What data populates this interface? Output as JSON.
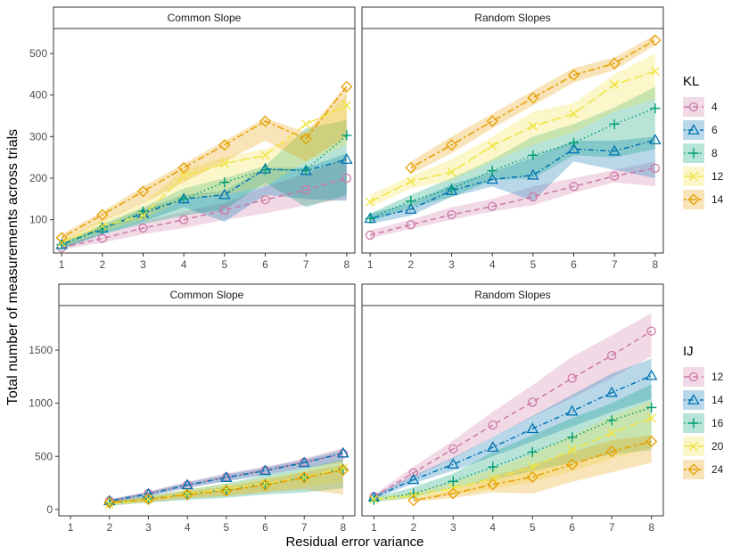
{
  "chart_data": {
    "ylabel": "Total number of measurements across trials",
    "xlabel": "Residual error variance",
    "facets": [
      {
        "id": "kl-common",
        "legend_group": "kl",
        "strip": "Common Slope",
        "type": "line",
        "x_ticks": [
          1,
          2,
          3,
          4,
          5,
          6,
          7,
          8
        ],
        "y_ticks": [
          100,
          200,
          300,
          400,
          500
        ],
        "ylim": [
          20,
          560
        ],
        "xlim": [
          0.8,
          8.2
        ],
        "series": [
          {
            "name": "4",
            "x": [
              1,
              2,
              3,
              4,
              5,
              6,
              7,
              8
            ],
            "y": [
              33,
              55,
              80,
              100,
              123,
              148,
              172,
              200
            ],
            "lo": [
              28,
              45,
              65,
              80,
              100,
              115,
              135,
              150
            ],
            "hi": [
              40,
              65,
              95,
              120,
              140,
              180,
              210,
              250
            ]
          },
          {
            "name": "6",
            "x": [
              1,
              2,
              3,
              4,
              5,
              6,
              7,
              8
            ],
            "y": [
              40,
              80,
              115,
              150,
              160,
              222,
              218,
              245
            ],
            "lo": [
              30,
              65,
              95,
              130,
              95,
              160,
              150,
              145
            ],
            "hi": [
              45,
              85,
              125,
              160,
              170,
              225,
              225,
              260
            ]
          },
          {
            "name": "8",
            "x": [
              1,
              2,
              3,
              4,
              5,
              6,
              7,
              8
            ],
            "y": [
              40,
              77,
              120,
              150,
              190,
              220,
              220,
              303
            ],
            "lo": [
              30,
              65,
              90,
              110,
              125,
              190,
              130,
              160
            ],
            "hi": [
              45,
              90,
              130,
              175,
              200,
              230,
              320,
              340
            ]
          },
          {
            "name": "12",
            "x": [
              1,
              2,
              3,
              4,
              5,
              6,
              7,
              8
            ],
            "y": [
              45,
              85,
              110,
              205,
              235,
              255,
              330,
              375
            ],
            "lo": [
              35,
              70,
              100,
              150,
              160,
              180,
              240,
              280
            ],
            "hi": [
              50,
              100,
              140,
              220,
              250,
              270,
              310,
              400
            ]
          },
          {
            "name": "14",
            "x": [
              1,
              2,
              3,
              4,
              5,
              6,
              7,
              8
            ],
            "y": [
              57,
              112,
              168,
              225,
              280,
              337,
              295,
              420
            ],
            "lo": [
              45,
              95,
              140,
              190,
              240,
              290,
              240,
              300
            ],
            "hi": [
              65,
              120,
              180,
              235,
              290,
              345,
              310,
              425
            ]
          }
        ]
      },
      {
        "id": "kl-random",
        "legend_group": "kl",
        "strip": "Random Slopes",
        "type": "line",
        "x_ticks": [
          1,
          2,
          3,
          4,
          5,
          6,
          7,
          8
        ],
        "y_ticks": [],
        "ylim": [
          20,
          560
        ],
        "xlim": [
          0.8,
          8.2
        ],
        "series": [
          {
            "name": "4",
            "x": [
              1,
              2,
              3,
              4,
              5,
              6,
              7,
              8
            ],
            "y": [
              63,
              88,
              112,
              132,
              155,
              180,
              205,
              224
            ],
            "lo": [
              55,
              78,
              100,
              120,
              135,
              165,
              190,
              180
            ],
            "hi": [
              75,
              100,
              130,
              150,
              180,
              200,
              220,
              240
            ]
          },
          {
            "name": "6",
            "x": [
              1,
              2,
              3,
              4,
              5,
              6,
              7,
              8
            ],
            "y": [
              103,
              125,
              170,
              197,
              207,
              270,
              265,
              292
            ],
            "lo": [
              90,
              110,
              155,
              180,
              145,
              240,
              220,
              200
            ],
            "hi": [
              115,
              140,
              185,
              215,
              250,
              290,
              290,
              300
            ]
          },
          {
            "name": "8",
            "x": [
              1,
              2,
              3,
              4,
              5,
              6,
              7,
              8
            ],
            "y": [
              103,
              145,
              175,
              218,
              255,
              285,
              330,
              368
            ],
            "lo": [
              95,
              130,
              155,
              195,
              200,
              255,
              250,
              270
            ],
            "hi": [
              115,
              160,
              200,
              245,
              300,
              330,
              370,
              420
            ]
          },
          {
            "name": "12",
            "x": [
              1,
              2,
              3,
              4,
              5,
              6,
              7,
              8
            ],
            "y": [
              143,
              192,
              215,
              278,
              325,
              355,
              425,
              457
            ],
            "lo": [
              130,
              175,
              195,
              240,
              280,
              310,
              360,
              390
            ],
            "hi": [
              160,
              205,
              245,
              300,
              360,
              380,
              450,
              500
            ]
          },
          {
            "name": "14",
            "x": [
              1,
              2,
              3,
              4,
              5,
              6,
              7,
              8
            ],
            "y": [
              null,
              225,
              280,
              337,
              393,
              448,
              476,
              532
            ],
            "lo": [
              null,
              210,
              260,
              320,
              375,
              430,
              460,
              520
            ],
            "hi": [
              null,
              240,
              300,
              355,
              410,
              465,
              490,
              545
            ]
          }
        ]
      },
      {
        "id": "ij-common",
        "legend_group": "ij",
        "strip": "Common Slope",
        "type": "line",
        "x_ticks": [
          1,
          2,
          3,
          4,
          5,
          6,
          7,
          8
        ],
        "y_ticks": [
          0,
          500,
          1000,
          1500
        ],
        "ylim": [
          -60,
          1920
        ],
        "xlim": [
          0.7,
          8.3
        ],
        "series": [
          {
            "name": "12",
            "x": [
              2,
              3,
              4,
              5,
              6,
              7,
              8
            ],
            "y": [
              80,
              150,
              230,
              305,
              370,
              445,
              525
            ],
            "lo": [
              65,
              125,
              200,
              270,
              330,
              390,
              440
            ],
            "hi": [
              95,
              170,
              260,
              340,
              400,
              480,
              580
            ]
          },
          {
            "name": "14",
            "x": [
              2,
              3,
              4,
              5,
              6,
              7,
              8
            ],
            "y": [
              80,
              145,
              230,
              300,
              365,
              440,
              530
            ],
            "lo": [
              65,
              125,
              205,
              265,
              320,
              390,
              460
            ],
            "hi": [
              95,
              165,
              255,
              330,
              395,
              470,
              560
            ]
          },
          {
            "name": "16",
            "x": [
              2,
              3,
              4,
              5,
              6,
              7,
              8
            ],
            "y": [
              55,
              100,
              145,
              185,
              240,
              300,
              380
            ],
            "lo": [
              35,
              65,
              90,
              110,
              140,
              160,
              200
            ],
            "hi": [
              75,
              130,
              185,
              245,
              320,
              390,
              470
            ]
          },
          {
            "name": "20",
            "x": [
              2,
              3,
              4,
              5,
              6,
              7,
              8
            ],
            "y": [
              50,
              95,
              150,
              190,
              245,
              300,
              390
            ],
            "lo": [
              35,
              70,
              110,
              130,
              170,
              210,
              260
            ],
            "hi": [
              65,
              120,
              190,
              240,
              300,
              370,
              470
            ]
          },
          {
            "name": "24",
            "x": [
              2,
              3,
              4,
              5,
              6,
              7,
              8
            ],
            "y": [
              65,
              95,
              140,
              175,
              230,
              300,
              370
            ],
            "lo": [
              50,
              70,
              105,
              125,
              160,
              190,
              140
            ],
            "hi": [
              80,
              115,
              170,
              215,
              280,
              350,
              420
            ]
          }
        ]
      },
      {
        "id": "ij-random",
        "legend_group": "ij",
        "strip": "Random Slopes",
        "type": "line",
        "x_ticks": [
          1,
          2,
          3,
          4,
          5,
          6,
          7,
          8
        ],
        "y_ticks": [],
        "ylim": [
          -60,
          1920
        ],
        "xlim": [
          0.7,
          8.3
        ],
        "series": [
          {
            "name": "12",
            "x": [
              1,
              2,
              3,
              4,
              5,
              6,
              7,
              8
            ],
            "y": [
              120,
              345,
              570,
              795,
              1010,
              1235,
              1450,
              1680
            ],
            "lo": [
              100,
              300,
              480,
              680,
              870,
              1050,
              1240,
              1440
            ],
            "hi": [
              140,
              400,
              650,
              920,
              1170,
              1440,
              1640,
              1850
            ]
          },
          {
            "name": "14",
            "x": [
              1,
              2,
              3,
              4,
              5,
              6,
              7,
              8
            ],
            "y": [
              115,
              280,
              425,
              585,
              760,
              925,
              1100,
              1260
            ],
            "lo": [
              95,
              245,
              365,
              500,
              640,
              780,
              920,
              1040
            ],
            "hi": [
              135,
              320,
              490,
              680,
              880,
              1080,
              1280,
              1420
            ]
          },
          {
            "name": "16",
            "x": [
              1,
              2,
              3,
              4,
              5,
              6,
              7,
              8
            ],
            "y": [
              90,
              150,
              265,
              400,
              540,
              680,
              840,
              960
            ],
            "lo": [
              70,
              110,
              200,
              280,
              360,
              440,
              520,
              560
            ],
            "hi": [
              110,
              210,
              340,
              540,
              700,
              860,
              1000,
              1180
            ]
          },
          {
            "name": "20",
            "x": [
              1,
              2,
              3,
              4,
              5,
              6,
              7,
              8
            ],
            "y": [
              95,
              130,
              200,
              290,
              400,
              560,
              720,
              860
            ],
            "lo": [
              75,
              100,
              140,
              190,
              260,
              360,
              480,
              580
            ],
            "hi": [
              115,
              160,
              260,
              380,
              520,
              700,
              880,
              1020
            ]
          },
          {
            "name": "24",
            "x": [
              2,
              3,
              4,
              5,
              6,
              7,
              8
            ],
            "y": [
              85,
              150,
              235,
              305,
              425,
              545,
              640
            ],
            "lo": [
              70,
              110,
              160,
              150,
              260,
              350,
              440
            ],
            "hi": [
              100,
              190,
              310,
              420,
              540,
              650,
              700
            ]
          }
        ]
      }
    ],
    "legends": {
      "kl": {
        "title": "KL",
        "entries": [
          "4",
          "6",
          "8",
          "12",
          "14"
        ]
      },
      "ij": {
        "title": "IJ",
        "entries": [
          "12",
          "14",
          "16",
          "20",
          "24"
        ]
      }
    },
    "series_styles": [
      {
        "color": "#cc79a7",
        "shape": "circle",
        "dash": "dashed"
      },
      {
        "color": "#0072b2",
        "shape": "triangle",
        "dash": "dotdash"
      },
      {
        "color": "#009e73",
        "shape": "plus",
        "dash": "dotted"
      },
      {
        "color": "#f0e442",
        "shape": "cross",
        "dash": "longdash"
      },
      {
        "color": "#e69f00",
        "shape": "diamond",
        "dash": "twodash"
      }
    ]
  }
}
